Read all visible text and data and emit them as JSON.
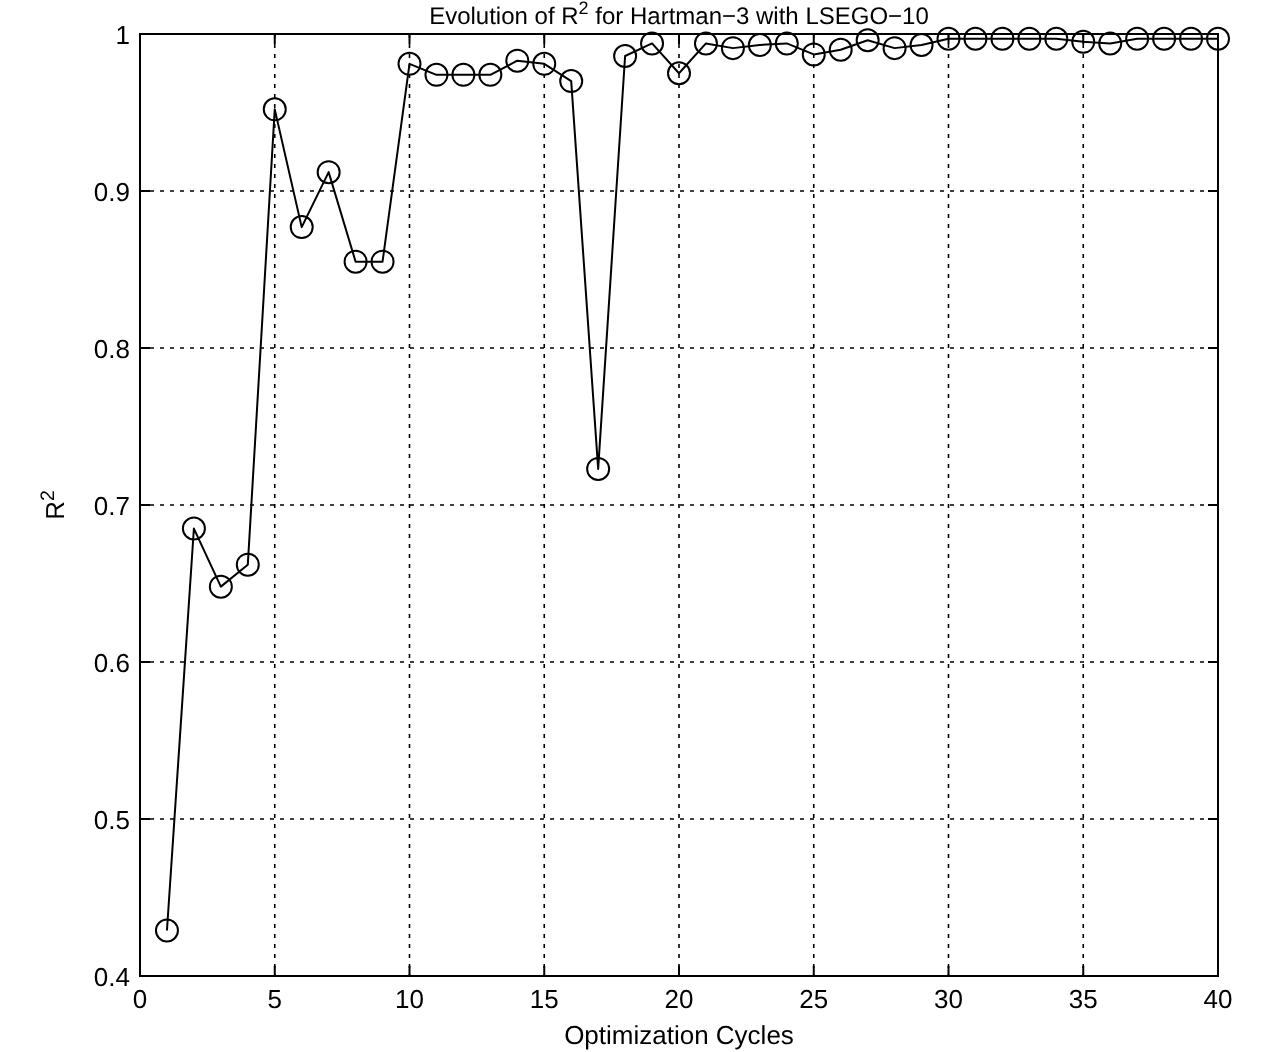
{
  "chart_data": {
    "type": "line",
    "title": "Evolution of R$^{2}$ for Hartman−3 with LSEGO−10",
    "xlabel": "Optimization Cycles",
    "ylabel": "R$^{2}$",
    "x": [
      1,
      2,
      3,
      4,
      5,
      6,
      7,
      8,
      9,
      10,
      11,
      12,
      13,
      14,
      15,
      16,
      17,
      18,
      19,
      20,
      21,
      22,
      23,
      24,
      25,
      26,
      27,
      28,
      29,
      30,
      31,
      32,
      33,
      34,
      35,
      36,
      37,
      38,
      39,
      40
    ],
    "series": [
      {
        "color": "#000000",
        "values": [
          0.429,
          0.685,
          0.648,
          0.662,
          0.952,
          0.877,
          0.912,
          0.855,
          0.855,
          0.981,
          0.974,
          0.974,
          0.974,
          0.983,
          0.981,
          0.97,
          0.723,
          0.986,
          0.994,
          0.975,
          0.994,
          0.991,
          0.993,
          0.994,
          0.987,
          0.99,
          0.996,
          0.991,
          0.993,
          0.997,
          0.997,
          0.997,
          0.997,
          0.997,
          0.995,
          0.994,
          0.997,
          0.997,
          0.997,
          0.997
        ]
      }
    ],
    "xlim": [
      0,
      40
    ],
    "xticks": [
      0,
      5,
      10,
      15,
      20,
      25,
      30,
      35,
      40
    ],
    "ylim": [
      0.4,
      1
    ],
    "yticks": [
      0.4,
      0.5,
      0.6,
      0.7,
      0.8,
      0.9,
      1
    ],
    "grid": true,
    "marker": "circle",
    "line_style": "solid"
  }
}
